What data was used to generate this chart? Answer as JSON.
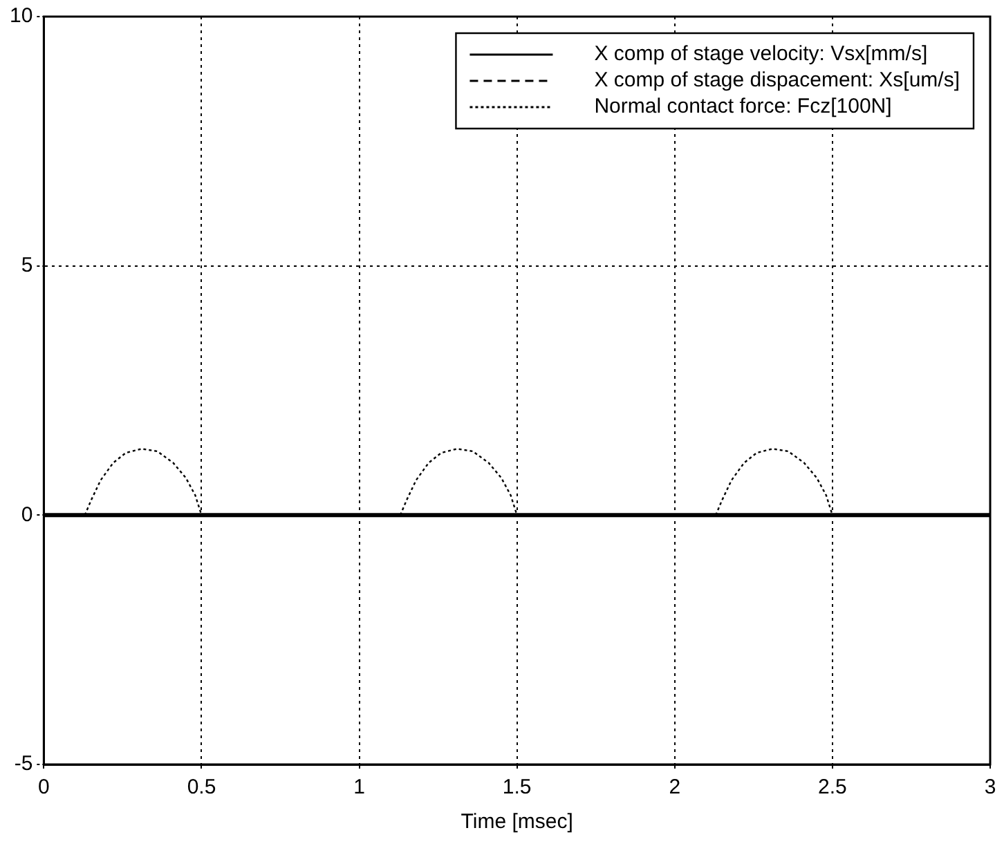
{
  "chart_data": {
    "type": "line",
    "xlabel": "Time [msec]",
    "xlim": [
      0,
      3
    ],
    "xticks": [
      0,
      0.5,
      1,
      1.5,
      2,
      2.5,
      3
    ],
    "ylim": [
      -5,
      10
    ],
    "yticks": [
      -5,
      0,
      5,
      10
    ],
    "grid": true,
    "legend": "top right",
    "marker": "none",
    "series": [
      {
        "name": "X comp of stage velocity: Vsx[mm/s]",
        "color": "#000000",
        "line_style": "solid",
        "x": [
          0,
          3
        ],
        "values": [
          0,
          0
        ]
      },
      {
        "name": "X comp of stage dispacement: Xs[um/s]",
        "color": "#000000",
        "line_style": "dashed"
      },
      {
        "name": "Normal contact force: Fcz[100N]",
        "color": "#000000",
        "line_style": "dotted",
        "x": [
          0.13,
          0.15,
          0.18,
          0.22,
          0.26,
          0.31,
          0.36,
          0.41,
          0.45,
          0.48,
          0.5,
          0.8,
          1.13,
          1.15,
          1.18,
          1.22,
          1.26,
          1.31,
          1.36,
          1.41,
          1.45,
          1.48,
          1.5,
          1.8,
          2.13,
          2.15,
          2.18,
          2.22,
          2.26,
          2.31,
          2.36,
          2.41,
          2.45,
          2.48,
          2.5
        ],
        "values": [
          0,
          0.3,
          0.7,
          1.05,
          1.25,
          1.33,
          1.28,
          1.05,
          0.75,
          0.4,
          0,
          null,
          0,
          0.3,
          0.7,
          1.05,
          1.25,
          1.33,
          1.28,
          1.05,
          0.75,
          0.4,
          0,
          null,
          0,
          0.3,
          0.7,
          1.05,
          1.25,
          1.33,
          1.28,
          1.05,
          0.75,
          0.4,
          0
        ]
      }
    ]
  }
}
